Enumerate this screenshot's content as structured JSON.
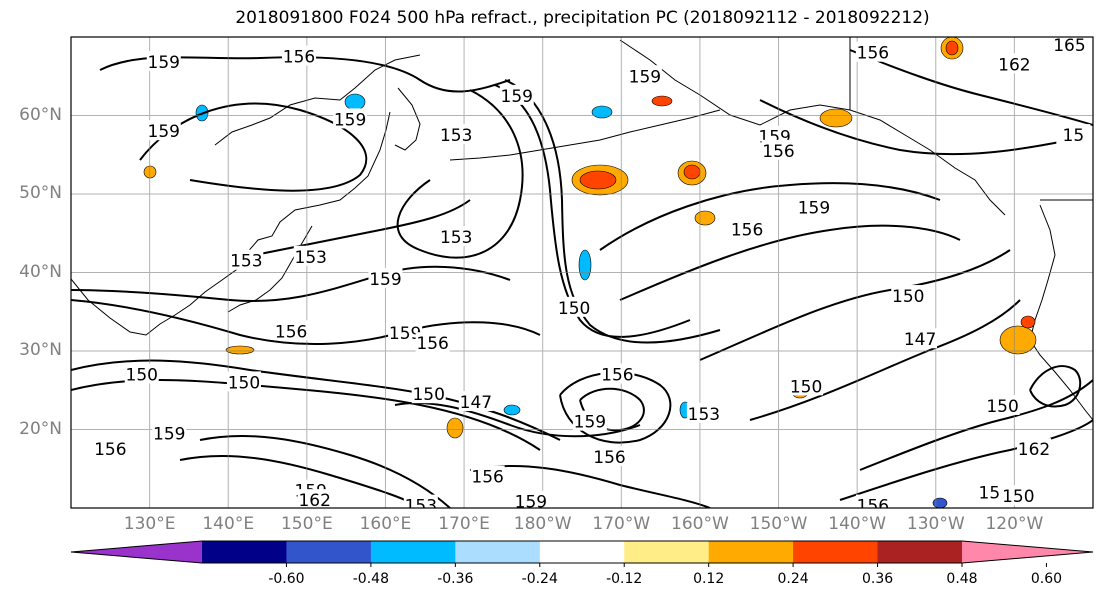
{
  "title": "2018091800 F024 500 hPa refract., precipitation PC (2018092112 - 2018092212)",
  "lat_labels": [
    {
      "label": "60°N",
      "lat": 60
    },
    {
      "label": "50°N",
      "lat": 50
    },
    {
      "label": "40°N",
      "lat": 40
    },
    {
      "label": "30°N",
      "lat": 30
    },
    {
      "label": "20°N",
      "lat": 20
    }
  ],
  "lon_labels": [
    {
      "label": "130°E",
      "lon": 130
    },
    {
      "label": "140°E",
      "lon": 140
    },
    {
      "label": "150°E",
      "lon": 150
    },
    {
      "label": "160°E",
      "lon": 160
    },
    {
      "label": "170°E",
      "lon": 170
    },
    {
      "label": "180°W",
      "lon": 180
    },
    {
      "label": "170°W",
      "lon": 190
    },
    {
      "label": "160°W",
      "lon": 200
    },
    {
      "label": "150°W",
      "lon": 210
    },
    {
      "label": "140°W",
      "lon": 220
    },
    {
      "label": "130°W",
      "lon": 230
    },
    {
      "label": "120°W",
      "lon": 240
    }
  ],
  "map_extent": {
    "lon_min": 120,
    "lon_max": 250,
    "lat_min": 10,
    "lat_max": 70
  },
  "colorbar": {
    "colors": [
      "#9933cc",
      "#000088",
      "#3355cc",
      "#00bbff",
      "#aaddff",
      "#ffffff",
      "#ffee88",
      "#ffaa00",
      "#ff4400",
      "#aa2222",
      "#ff88aa"
    ],
    "tick_labels": [
      "-0.60",
      "-0.48",
      "-0.36",
      "-0.24",
      "-0.12",
      "0.12",
      "0.24",
      "0.36",
      "0.48",
      "0.60"
    ]
  },
  "contour_labels": [
    {
      "text": "159",
      "lon": 131.8,
      "lat": 66.8
    },
    {
      "text": "156",
      "lon": 149.0,
      "lat": 67.5
    },
    {
      "text": "159",
      "lon": 131.8,
      "lat": 58.0
    },
    {
      "text": "159",
      "lon": 155.5,
      "lat": 59.5
    },
    {
      "text": "153",
      "lon": 169.0,
      "lat": 57.5
    },
    {
      "text": "159",
      "lon": 176.7,
      "lat": 62.5
    },
    {
      "text": "159",
      "lon": 193.0,
      "lat": 65.0
    },
    {
      "text": "156",
      "lon": 222.0,
      "lat": 68.0
    },
    {
      "text": "162",
      "lon": 240.0,
      "lat": 66.5
    },
    {
      "text": "165",
      "lon": 247.0,
      "lat": 69.0
    },
    {
      "text": "159",
      "lon": 209.5,
      "lat": 57.3
    },
    {
      "text": "156",
      "lon": 210.0,
      "lat": 55.5
    },
    {
      "text": "15",
      "lon": 247.5,
      "lat": 57.5
    },
    {
      "text": "159",
      "lon": 214.5,
      "lat": 48.3
    },
    {
      "text": "156",
      "lon": 206.0,
      "lat": 45.5
    },
    {
      "text": "153",
      "lon": 169.0,
      "lat": 44.5
    },
    {
      "text": "153",
      "lon": 142.3,
      "lat": 41.5
    },
    {
      "text": "153",
      "lon": 150.5,
      "lat": 42.0
    },
    {
      "text": "159",
      "lon": 160.0,
      "lat": 39.2
    },
    {
      "text": "150",
      "lon": 184.0,
      "lat": 35.5
    },
    {
      "text": "156",
      "lon": 148.0,
      "lat": 32.5
    },
    {
      "text": "159",
      "lon": 162.5,
      "lat": 32.3
    },
    {
      "text": "156",
      "lon": 166.0,
      "lat": 31.0
    },
    {
      "text": "150",
      "lon": 226.5,
      "lat": 37.0
    },
    {
      "text": "147",
      "lon": 228.0,
      "lat": 31.5
    },
    {
      "text": "150",
      "lon": 129.0,
      "lat": 27.0
    },
    {
      "text": "150",
      "lon": 142.0,
      "lat": 26.0
    },
    {
      "text": "150",
      "lon": 165.5,
      "lat": 24.5
    },
    {
      "text": "147",
      "lon": 171.5,
      "lat": 23.5
    },
    {
      "text": "156",
      "lon": 189.5,
      "lat": 27.0
    },
    {
      "text": "159",
      "lon": 186.0,
      "lat": 21.0
    },
    {
      "text": "153",
      "lon": 200.5,
      "lat": 22.0
    },
    {
      "text": "150",
      "lon": 213.5,
      "lat": 25.5
    },
    {
      "text": "159",
      "lon": 132.5,
      "lat": 19.5
    },
    {
      "text": "156",
      "lon": 125.0,
      "lat": 17.5
    },
    {
      "text": "156",
      "lon": 188.5,
      "lat": 16.5
    },
    {
      "text": "156",
      "lon": 173.0,
      "lat": 14.0
    },
    {
      "text": "159",
      "lon": 150.5,
      "lat": 12.2
    },
    {
      "text": "162",
      "lon": 151.0,
      "lat": 11.0
    },
    {
      "text": "159",
      "lon": 178.5,
      "lat": 10.8
    },
    {
      "text": "153",
      "lon": 164.5,
      "lat": 10.3
    },
    {
      "text": "156",
      "lon": 222.0,
      "lat": 10.3
    },
    {
      "text": "153",
      "lon": 237.5,
      "lat": 12.0
    },
    {
      "text": "150",
      "lon": 240.5,
      "lat": 11.5
    },
    {
      "text": "162",
      "lon": 242.5,
      "lat": 17.5
    },
    {
      "text": "150",
      "lon": 238.5,
      "lat": 23.0
    }
  ]
}
